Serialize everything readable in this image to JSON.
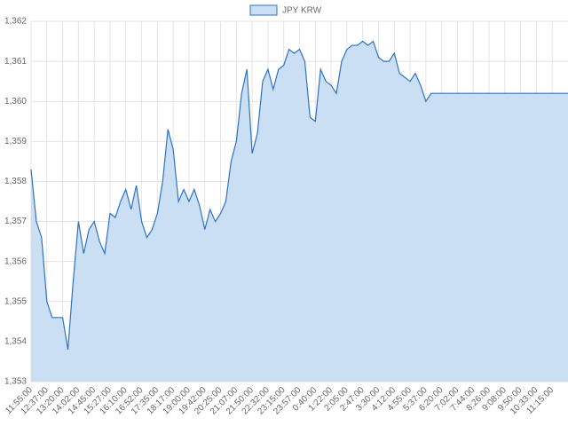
{
  "chart_data": {
    "type": "area",
    "categories": [
      "11:55:00",
      null,
      null,
      "12:37:00",
      null,
      null,
      "13:20:00",
      null,
      null,
      "14:02:00",
      null,
      null,
      "14:45:00",
      null,
      null,
      "15:27:00",
      null,
      null,
      "16:10:00",
      null,
      null,
      "16:52:00",
      null,
      null,
      "17:35:00",
      null,
      null,
      "18:17:00",
      null,
      null,
      "19:00:00",
      null,
      null,
      "19:42:00",
      null,
      null,
      "20:25:00",
      null,
      null,
      "21:07:00",
      null,
      null,
      "21:50:00",
      null,
      null,
      "22:32:00",
      null,
      null,
      "23:15:00",
      null,
      null,
      "23:57:00",
      null,
      null,
      "0:40:00",
      null,
      null,
      "1:22:00",
      null,
      null,
      "2:05:00",
      null,
      null,
      "2:47:00",
      null,
      null,
      "3:30:00",
      null,
      null,
      "4:12:00",
      null,
      null,
      "4:55:00",
      null,
      null,
      "5:37:00",
      null,
      null,
      "6:20:00",
      null,
      null,
      "7:02:00",
      null,
      null,
      "7:44:00",
      null,
      null,
      "8:26:00",
      null,
      null,
      "9:08:00",
      null,
      null,
      "9:50:00",
      null,
      null,
      "10:33:00",
      null,
      null,
      "11:15:00",
      null,
      null,
      null
    ],
    "series": [
      {
        "name": "JPY KRW",
        "color": "#2f72c4",
        "fill": "#cbdff4",
        "values": [
          1358.3,
          1357.0,
          1356.6,
          1355.0,
          1354.6,
          1354.6,
          1354.6,
          1353.8,
          1355.5,
          1357.0,
          1356.2,
          1356.8,
          1357.0,
          1356.5,
          1356.2,
          1357.2,
          1357.1,
          1357.5,
          1357.8,
          1357.3,
          1357.9,
          1357.0,
          1356.6,
          1356.8,
          1357.2,
          1358.0,
          1359.3,
          1358.8,
          1357.5,
          1357.8,
          1357.5,
          1357.8,
          1357.4,
          1356.8,
          1357.3,
          1357.0,
          1357.2,
          1357.5,
          1358.5,
          1359.0,
          1360.2,
          1360.8,
          1358.7,
          1359.2,
          1360.5,
          1360.8,
          1360.3,
          1360.8,
          1360.9,
          1361.3,
          1361.2,
          1361.3,
          1361.0,
          1359.6,
          1359.5,
          1360.8,
          1360.5,
          1360.4,
          1360.2,
          1361.0,
          1361.3,
          1361.4,
          1361.4,
          1361.5,
          1361.4,
          1361.5,
          1361.1,
          1361.0,
          1361.0,
          1361.2,
          1360.7,
          1360.6,
          1360.5,
          1360.7,
          1360.4,
          1360.0,
          1360.2,
          1360.2,
          1360.2,
          1360.2,
          1360.2,
          1360.2,
          1360.2,
          1360.2,
          1360.2,
          1360.2,
          1360.2,
          1360.2,
          1360.2,
          1360.2,
          1360.2,
          1360.2,
          1360.2,
          1360.2,
          1360.2,
          1360.2,
          1360.2,
          1360.2,
          1360.2,
          1360.2,
          1360.2,
          1360.2,
          1360.2
        ]
      }
    ],
    "ylim": [
      1353,
      1362
    ],
    "yticks": [
      {
        "value": 1353,
        "label": "1,353"
      },
      {
        "value": 1354,
        "label": "1,354"
      },
      {
        "value": 1355,
        "label": "1,355"
      },
      {
        "value": 1356,
        "label": "1,356"
      },
      {
        "value": 1357,
        "label": "1,357"
      },
      {
        "value": 1358,
        "label": "1,358"
      },
      {
        "value": 1359,
        "label": "1,359"
      },
      {
        "value": 1360,
        "label": "1,360"
      },
      {
        "value": 1361,
        "label": "1,361"
      },
      {
        "value": 1362,
        "label": "1,362"
      }
    ],
    "grid": true,
    "legend": "top"
  }
}
